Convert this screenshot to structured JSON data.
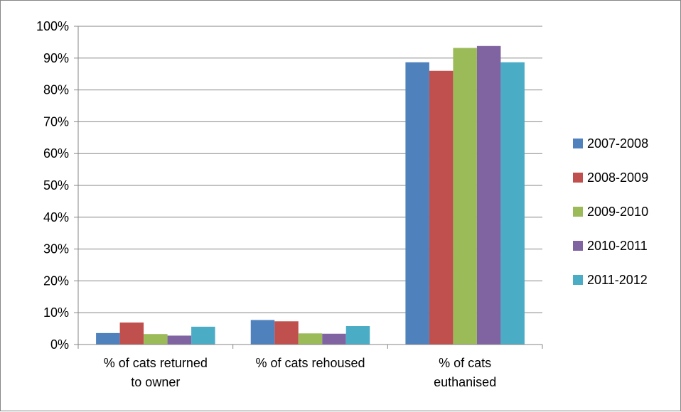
{
  "chart_data": {
    "type": "bar",
    "title": "",
    "xlabel": "",
    "ylabel": "",
    "categories": [
      [
        "% of cats returned",
        "to owner"
      ],
      [
        "% of cats rehoused"
      ],
      [
        "% of cats",
        "euthanised"
      ]
    ],
    "series": [
      {
        "name": "2007-2008",
        "color": "#4F81BD",
        "values": [
          3.6,
          7.7,
          88.7
        ]
      },
      {
        "name": "2008-2009",
        "color": "#C0504D",
        "values": [
          6.9,
          7.3,
          86.0
        ]
      },
      {
        "name": "2009-2010",
        "color": "#9BBB59",
        "values": [
          3.3,
          3.5,
          93.2
        ]
      },
      {
        "name": "2010-2011",
        "color": "#8064A2",
        "values": [
          2.8,
          3.4,
          93.8
        ]
      },
      {
        "name": "2011-2012",
        "color": "#4BACC6",
        "values": [
          5.6,
          5.8,
          88.7
        ]
      }
    ],
    "ylim": [
      0,
      100
    ],
    "yticks": [
      "0%",
      "10%",
      "20%",
      "30%",
      "40%",
      "50%",
      "60%",
      "70%",
      "80%",
      "90%",
      "100%"
    ],
    "grid": true,
    "legend": "right"
  }
}
